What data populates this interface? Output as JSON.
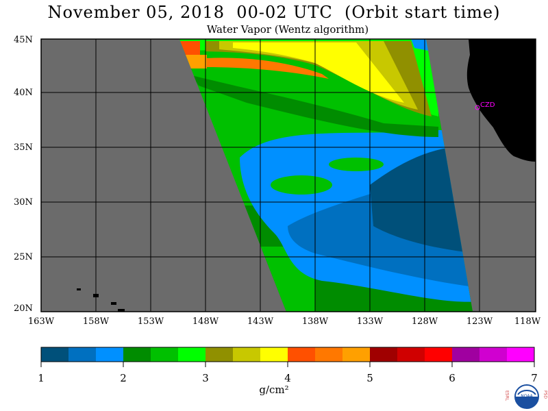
{
  "header": {
    "title": "November 05, 2018  00-02 UTC  (Orbit start time)",
    "subtitle": "Water Vapor (Wentz algorithm)"
  },
  "map": {
    "lat_labels": [
      "45N",
      "40N",
      "35N",
      "30N",
      "25N",
      "20N"
    ],
    "lon_labels": [
      "163W",
      "158W",
      "153W",
      "148W",
      "143W",
      "138W",
      "133W",
      "128W",
      "123W",
      "118W"
    ],
    "station_label": "CZD",
    "colors": {
      "no_data": "#6b6b6b",
      "land": "#000000",
      "grid": "#000000",
      "station": "#ff00ff"
    }
  },
  "colorbar": {
    "tick_labels": [
      "1",
      "2",
      "3",
      "4",
      "5",
      "6",
      "7"
    ],
    "unit": "g/cm²",
    "colors": [
      "#00507a",
      "#0070c0",
      "#0090ff",
      "#008c00",
      "#00c000",
      "#00ff00",
      "#909000",
      "#c8c800",
      "#ffff00",
      "#ff5000",
      "#ff7800",
      "#ffa000",
      "#a00000",
      "#d00000",
      "#ff0000",
      "#a000a0",
      "#d000d0",
      "#ff00ff"
    ]
  },
  "logo": {
    "left_letters": "ESRL",
    "right_letters": "PSD",
    "center_text": "NOAA"
  }
}
